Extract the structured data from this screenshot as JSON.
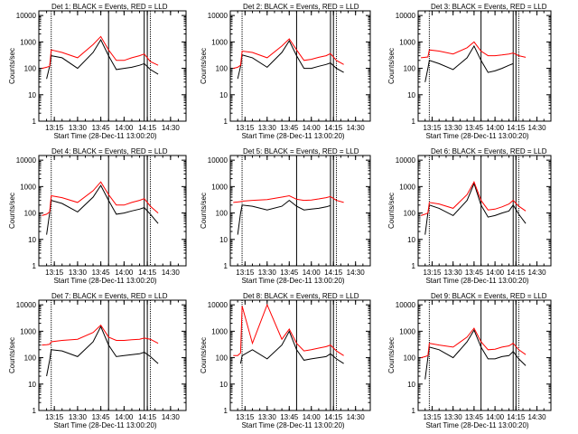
{
  "colors": {
    "events": "#000000",
    "lld": "#ff0000",
    "frame": "#000000",
    "background": "#ffffff"
  },
  "chart_data": [
    {
      "type": "line",
      "title": "Det 1: BLACK = Events, RED = LLD",
      "xlabel": "Start Time (28-Dec-11 13:00:20)",
      "ylabel": "Counts/sec",
      "y_scale": "log",
      "ylim": [
        1,
        15000
      ],
      "xlim": [
        "13:05",
        "14:40"
      ],
      "x_ticks": [
        "13:15",
        "13:30",
        "13:45",
        "14:00",
        "14:15",
        "14:30"
      ],
      "y_ticks": [
        "1",
        "10",
        "100",
        "1000",
        "10000"
      ],
      "vertical_lines": [
        "13:13",
        "13:50",
        "14:13",
        "14:15",
        "14:17"
      ],
      "x": [
        "13:07",
        "13:10",
        "13:12",
        "13:13",
        "13:20",
        "13:30",
        "13:40",
        "13:45",
        "13:50",
        "13:55",
        "14:00",
        "14:05",
        "14:10",
        "14:13",
        "14:17",
        "14:22",
        "14:27"
      ],
      "series": [
        {
          "name": "Events",
          "color": "#000000",
          "values": [
            null,
            40,
            120,
            300,
            250,
            100,
            400,
            1200,
            300,
            90,
            100,
            110,
            130,
            150,
            90,
            60,
            null
          ]
        },
        {
          "name": "LLD",
          "color": "#ff0000",
          "values": [
            100,
            110,
            120,
            500,
            400,
            250,
            800,
            1600,
            500,
            200,
            200,
            250,
            300,
            350,
            180,
            130,
            null
          ]
        }
      ]
    },
    {
      "type": "line",
      "title": "Det 2: BLACK = Events, RED = LLD",
      "xlabel": "Start Time (28-Dec-11 13:00:20)",
      "ylabel": "Counts/sec",
      "y_scale": "log",
      "ylim": [
        1,
        15000
      ],
      "xlim": [
        "13:05",
        "14:40"
      ],
      "x_ticks": [
        "13:15",
        "13:30",
        "13:45",
        "14:00",
        "14:15",
        "14:30"
      ],
      "y_ticks": [
        "1",
        "10",
        "100",
        "1000",
        "10000"
      ],
      "vertical_lines": [
        "13:13",
        "13:50",
        "14:13",
        "14:15",
        "14:17"
      ],
      "x": [
        "13:07",
        "13:10",
        "13:12",
        "13:13",
        "13:20",
        "13:30",
        "13:40",
        "13:45",
        "13:50",
        "13:55",
        "14:00",
        "14:05",
        "14:10",
        "14:13",
        "14:17",
        "14:22",
        "14:27"
      ],
      "series": [
        {
          "name": "Events",
          "color": "#000000",
          "values": [
            null,
            40,
            120,
            320,
            250,
            110,
            400,
            1100,
            300,
            100,
            100,
            120,
            140,
            160,
            100,
            70,
            null
          ]
        },
        {
          "name": "LLD",
          "color": "#ff0000",
          "values": [
            100,
            110,
            130,
            450,
            400,
            250,
            700,
            1300,
            500,
            200,
            220,
            260,
            300,
            360,
            200,
            140,
            null
          ]
        }
      ]
    },
    {
      "type": "line",
      "title": "Det 3: BLACK = Events, RED = LLD",
      "xlabel": "Start Time (28-Dec-11 13:00:20)",
      "ylabel": "Counts/sec",
      "y_scale": "log",
      "ylim": [
        1,
        15000
      ],
      "xlim": [
        "13:05",
        "14:40"
      ],
      "x_ticks": [
        "13:15",
        "13:30",
        "13:45",
        "14:00",
        "14:15",
        "14:30"
      ],
      "y_ticks": [
        "1",
        "10",
        "100",
        "1000",
        "10000"
      ],
      "vertical_lines": [
        "13:13",
        "13:50",
        "14:13",
        "14:15",
        "14:17"
      ],
      "x": [
        "13:07",
        "13:10",
        "13:12",
        "13:13",
        "13:20",
        "13:30",
        "13:40",
        "13:45",
        "13:50",
        "13:55",
        "14:00",
        "14:05",
        "14:10",
        "14:13",
        "14:17",
        "14:22",
        "14:27"
      ],
      "series": [
        {
          "name": "Events",
          "color": "#000000",
          "values": [
            null,
            30,
            100,
            200,
            150,
            90,
            250,
            700,
            200,
            70,
            80,
            100,
            130,
            150,
            null,
            null,
            null
          ]
        },
        {
          "name": "LLD",
          "color": "#ff0000",
          "values": [
            250,
            260,
            270,
            500,
            450,
            350,
            600,
            1000,
            450,
            300,
            300,
            320,
            350,
            380,
            300,
            260,
            null
          ]
        }
      ]
    },
    {
      "type": "line",
      "title": "Det 4: BLACK = Events, RED = LLD",
      "xlabel": "Start Time (28-Dec-11 13:00:20)",
      "ylabel": "Counts/sec",
      "y_scale": "log",
      "ylim": [
        1,
        15000
      ],
      "xlim": [
        "13:05",
        "14:40"
      ],
      "x_ticks": [
        "13:15",
        "13:30",
        "13:45",
        "14:00",
        "14:15",
        "14:30"
      ],
      "y_ticks": [
        "1",
        "10",
        "100",
        "1000",
        "10000"
      ],
      "vertical_lines": [
        "13:13",
        "13:50",
        "14:13",
        "14:15",
        "14:17"
      ],
      "x": [
        "13:07",
        "13:10",
        "13:12",
        "13:13",
        "13:20",
        "13:30",
        "13:40",
        "13:45",
        "13:50",
        "13:55",
        "14:00",
        "14:05",
        "14:10",
        "14:13",
        "14:17",
        "14:22",
        "14:27"
      ],
      "series": [
        {
          "name": "Events",
          "color": "#000000",
          "values": [
            null,
            15,
            100,
            300,
            230,
            110,
            400,
            1100,
            300,
            90,
            100,
            120,
            140,
            160,
            90,
            40,
            null
          ]
        },
        {
          "name": "LLD",
          "color": "#ff0000",
          "values": [
            80,
            90,
            110,
            450,
            380,
            250,
            700,
            1500,
            500,
            200,
            200,
            250,
            300,
            350,
            180,
            100,
            null
          ]
        }
      ]
    },
    {
      "type": "line",
      "title": "Det 5: BLACK = Events, RED = LLD",
      "xlabel": "Start Time (28-Dec-11 13:00:20)",
      "ylabel": "Counts/sec",
      "y_scale": "log",
      "ylim": [
        1,
        15000
      ],
      "xlim": [
        "13:05",
        "14:40"
      ],
      "x_ticks": [
        "13:15",
        "13:30",
        "13:45",
        "14:00",
        "14:15",
        "14:30"
      ],
      "y_ticks": [
        "1",
        "10",
        "100",
        "1000",
        "10000"
      ],
      "vertical_lines": [
        "13:13",
        "13:50",
        "14:13",
        "14:15",
        "14:17"
      ],
      "x": [
        "13:07",
        "13:10",
        "13:12",
        "13:13",
        "13:20",
        "13:30",
        "13:40",
        "13:45",
        "13:50",
        "13:55",
        "14:00",
        "14:05",
        "14:10",
        "14:13",
        "14:17",
        "14:22",
        "14:27"
      ],
      "series": [
        {
          "name": "Events",
          "color": "#000000",
          "values": [
            null,
            15,
            100,
            200,
            180,
            130,
            180,
            300,
            180,
            130,
            140,
            150,
            170,
            190,
            null,
            null,
            null
          ]
        },
        {
          "name": "LLD",
          "color": "#ff0000",
          "values": [
            250,
            260,
            270,
            280,
            300,
            320,
            400,
            450,
            330,
            300,
            310,
            340,
            380,
            420,
            300,
            250,
            null
          ]
        }
      ]
    },
    {
      "type": "line",
      "title": "Det 6: BLACK = Events, RED = LLD",
      "xlabel": "Start Time (28-Dec-11 13:00:20)",
      "ylabel": "Counts/sec",
      "y_scale": "log",
      "ylim": [
        1,
        15000
      ],
      "xlim": [
        "13:05",
        "14:40"
      ],
      "x_ticks": [
        "13:15",
        "13:30",
        "13:45",
        "14:00",
        "14:15",
        "14:30"
      ],
      "y_ticks": [
        "1",
        "10",
        "100",
        "1000",
        "10000"
      ],
      "vertical_lines": [
        "13:13",
        "13:50",
        "14:13",
        "14:15",
        "14:17"
      ],
      "x": [
        "13:07",
        "13:10",
        "13:12",
        "13:13",
        "13:20",
        "13:30",
        "13:40",
        "13:45",
        "13:50",
        "13:55",
        "14:00",
        "14:05",
        "14:10",
        "14:13",
        "14:17",
        "14:22",
        "14:27"
      ],
      "series": [
        {
          "name": "Events",
          "color": "#000000",
          "values": [
            null,
            15,
            100,
            200,
            150,
            80,
            300,
            1300,
            200,
            70,
            80,
            100,
            120,
            200,
            90,
            40,
            null
          ]
        },
        {
          "name": "LLD",
          "color": "#ff0000",
          "values": [
            80,
            90,
            100,
            250,
            220,
            150,
            500,
            1500,
            300,
            130,
            140,
            170,
            220,
            300,
            180,
            120,
            null
          ]
        }
      ]
    },
    {
      "type": "line",
      "title": "Det 7: BLACK = Events, RED = LLD",
      "xlabel": "Start Time (28-Dec-11 13:00:20)",
      "ylabel": "Counts/sec",
      "y_scale": "log",
      "ylim": [
        1,
        15000
      ],
      "xlim": [
        "13:05",
        "14:40"
      ],
      "x_ticks": [
        "13:15",
        "13:30",
        "13:45",
        "14:00",
        "14:15",
        "14:30"
      ],
      "y_ticks": [
        "1",
        "10",
        "100",
        "1000",
        "10000"
      ],
      "vertical_lines": [
        "13:13",
        "13:50",
        "14:13",
        "14:15",
        "14:17"
      ],
      "x": [
        "13:07",
        "13:10",
        "13:12",
        "13:13",
        "13:20",
        "13:30",
        "13:40",
        "13:45",
        "13:50",
        "13:55",
        "14:00",
        "14:05",
        "14:10",
        "14:13",
        "14:17",
        "14:22",
        "14:27"
      ],
      "series": [
        {
          "name": "Events",
          "color": "#000000",
          "values": [
            null,
            20,
            80,
            200,
            180,
            110,
            400,
            1500,
            300,
            110,
            120,
            130,
            140,
            160,
            110,
            60,
            null
          ]
        },
        {
          "name": "LLD",
          "color": "#ff0000",
          "values": [
            300,
            310,
            320,
            400,
            450,
            500,
            900,
            1700,
            600,
            450,
            450,
            480,
            500,
            550,
            500,
            350,
            null
          ]
        }
      ]
    },
    {
      "type": "line",
      "title": "Det 8: BLACK = Events, RED = LLD",
      "xlabel": "Start Time (28-Dec-11 13:00:20)",
      "ylabel": "Counts/sec",
      "y_scale": "log",
      "ylim": [
        1,
        15000
      ],
      "xlim": [
        "13:05",
        "14:40"
      ],
      "x_ticks": [
        "13:15",
        "13:30",
        "13:45",
        "14:00",
        "14:15",
        "14:30"
      ],
      "y_ticks": [
        "1",
        "10",
        "100",
        "1000",
        "10000"
      ],
      "vertical_lines": [
        "13:13",
        "13:50",
        "14:13",
        "14:15",
        "14:17"
      ],
      "x": [
        "13:07",
        "13:10",
        "13:12",
        "13:13",
        "13:20",
        "13:30",
        "13:40",
        "13:45",
        "13:50",
        "13:55",
        "14:00",
        "14:05",
        "14:10",
        "14:13",
        "14:17",
        "14:22",
        "14:27"
      ],
      "series": [
        {
          "name": "Events",
          "color": "#000000",
          "values": [
            null,
            null,
            60,
            120,
            200,
            90,
            300,
            1000,
            200,
            80,
            90,
            100,
            110,
            140,
            90,
            60,
            null
          ]
        },
        {
          "name": "LLD",
          "color": "#ff0000",
          "values": [
            120,
            120,
            150,
            9000,
            350,
            10000,
            500,
            1200,
            350,
            180,
            200,
            230,
            260,
            300,
            180,
            120,
            null
          ]
        }
      ]
    },
    {
      "type": "line",
      "title": "Det 9: BLACK = Events, RED = LLD",
      "xlabel": "Start Time (28-Dec-11 13:00:20)",
      "ylabel": "Counts/sec",
      "y_scale": "log",
      "ylim": [
        1,
        15000
      ],
      "xlim": [
        "13:05",
        "14:40"
      ],
      "x_ticks": [
        "13:15",
        "13:30",
        "13:45",
        "14:00",
        "14:15",
        "14:30"
      ],
      "y_ticks": [
        "1",
        "10",
        "100",
        "1000",
        "10000"
      ],
      "vertical_lines": [
        "13:13",
        "13:50",
        "14:13",
        "14:15",
        "14:17"
      ],
      "x": [
        "13:07",
        "13:10",
        "13:12",
        "13:13",
        "13:20",
        "13:30",
        "13:40",
        "13:45",
        "13:50",
        "13:55",
        "14:00",
        "14:05",
        "14:10",
        "14:13",
        "14:17",
        "14:22",
        "14:27"
      ],
      "series": [
        {
          "name": "Events",
          "color": "#000000",
          "values": [
            null,
            15,
            100,
            250,
            200,
            100,
            400,
            1100,
            250,
            90,
            90,
            110,
            120,
            170,
            90,
            50,
            null
          ]
        },
        {
          "name": "LLD",
          "color": "#ff0000",
          "values": [
            100,
            110,
            120,
            350,
            300,
            250,
            600,
            1300,
            400,
            200,
            210,
            250,
            280,
            350,
            200,
            130,
            null
          ]
        }
      ]
    }
  ]
}
